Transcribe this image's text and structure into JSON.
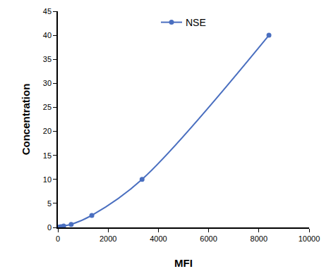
{
  "chart_data": {
    "type": "line",
    "x_label": "MFI",
    "y_label": "Concentration",
    "series": [
      {
        "name": "NSE",
        "color": "#4a6fc0",
        "marker": "circle",
        "line_style": "solid",
        "x": [
          50,
          120,
          230,
          530,
          1350,
          3350,
          8400
        ],
        "values": [
          0.08,
          0.16,
          0.31,
          0.63,
          2.5,
          10,
          40
        ]
      }
    ],
    "xlim": [
      0,
      10000
    ],
    "xticks": [
      0,
      2000,
      4000,
      6000,
      8000,
      10000
    ],
    "ylim": [
      0,
      45
    ],
    "yticks": [
      0,
      5,
      10,
      15,
      20,
      25,
      30,
      35,
      40,
      45
    ],
    "grid": false,
    "legend": "top"
  }
}
